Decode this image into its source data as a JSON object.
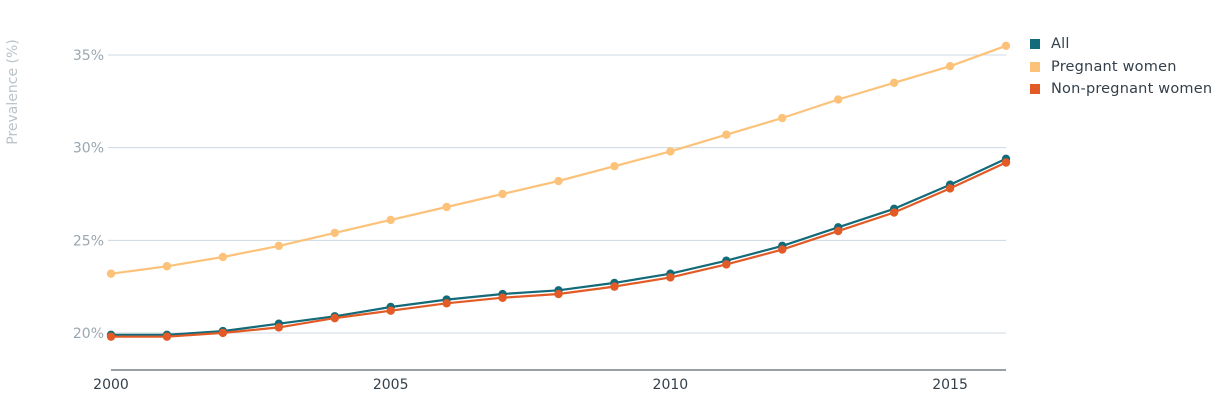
{
  "chart_data": {
    "type": "line",
    "title": "",
    "xlabel": "",
    "ylabel": "Prevalence (%)",
    "x": [
      2000,
      2001,
      2002,
      2003,
      2004,
      2005,
      2006,
      2007,
      2008,
      2009,
      2010,
      2011,
      2012,
      2013,
      2014,
      2015,
      2016
    ],
    "xlim": [
      2000,
      2016
    ],
    "ylim": [
      18,
      37
    ],
    "x_ticks": [
      2000,
      2005,
      2010,
      2015
    ],
    "x_tick_labels": [
      "2000",
      "2005",
      "2010",
      "2015"
    ],
    "y_ticks": [
      20,
      25,
      30,
      35
    ],
    "y_tick_labels": [
      "20%",
      "25%",
      "30%",
      "35%"
    ],
    "grid": "horizontal",
    "legend_position": "right",
    "series": [
      {
        "name": "All",
        "color": "#136a79",
        "values": [
          19.9,
          19.9,
          20.1,
          20.5,
          20.9,
          21.4,
          21.8,
          22.1,
          22.3,
          22.7,
          23.2,
          23.9,
          24.7,
          25.7,
          26.7,
          28.0,
          29.4
        ]
      },
      {
        "name": "Pregnant women",
        "color": "#fcc27a",
        "values": [
          23.2,
          23.6,
          24.1,
          24.7,
          25.4,
          26.1,
          26.8,
          27.5,
          28.2,
          29.0,
          29.8,
          30.7,
          31.6,
          32.6,
          33.5,
          34.4,
          35.5
        ]
      },
      {
        "name": "Non-pregnant women",
        "color": "#e25a26",
        "values": [
          19.8,
          19.8,
          20.0,
          20.3,
          20.8,
          21.2,
          21.6,
          21.9,
          22.1,
          22.5,
          23.0,
          23.7,
          24.5,
          25.5,
          26.5,
          27.8,
          29.2
        ]
      }
    ]
  },
  "legend": {
    "items": [
      {
        "label": "All",
        "color": "#136a79"
      },
      {
        "label": "Pregnant women",
        "color": "#fcc27a"
      },
      {
        "label": "Non-pregnant women",
        "color": "#e25a26"
      }
    ]
  }
}
